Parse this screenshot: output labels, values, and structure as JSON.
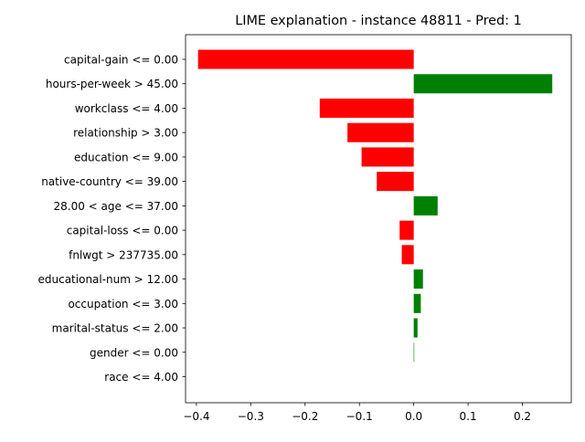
{
  "chart_data": {
    "type": "bar",
    "orientation": "horizontal",
    "title": "LIME explanation - instance 48811 - Pred: 1",
    "xlabel": "",
    "ylabel": "",
    "xlim": [
      -0.42,
      0.29
    ],
    "xticks": [
      -0.4,
      -0.3,
      -0.2,
      -0.1,
      0.0,
      0.1,
      0.2
    ],
    "xtick_labels": [
      "−0.4",
      "−0.3",
      "−0.2",
      "−0.1",
      "0.0",
      "0.1",
      "0.2"
    ],
    "grid": false,
    "legend": null,
    "colors": {
      "positive": "#008000",
      "negative": "#ff0000"
    },
    "categories": [
      "capital-gain <= 0.00",
      "hours-per-week > 45.00",
      "workclass <= 4.00",
      "relationship > 3.00",
      "education <= 9.00",
      "native-country <= 39.00",
      "28.00 < age <= 37.00",
      "capital-loss <= 0.00",
      "fnlwgt > 237735.00",
      "educational-num > 12.00",
      "occupation <= 3.00",
      "marital-status <= 2.00",
      "gender <= 0.00",
      "race <= 4.00"
    ],
    "values": [
      -0.397,
      0.255,
      -0.173,
      -0.122,
      -0.096,
      -0.068,
      0.044,
      -0.026,
      -0.022,
      0.017,
      0.013,
      0.007,
      0.001,
      0.0
    ]
  }
}
